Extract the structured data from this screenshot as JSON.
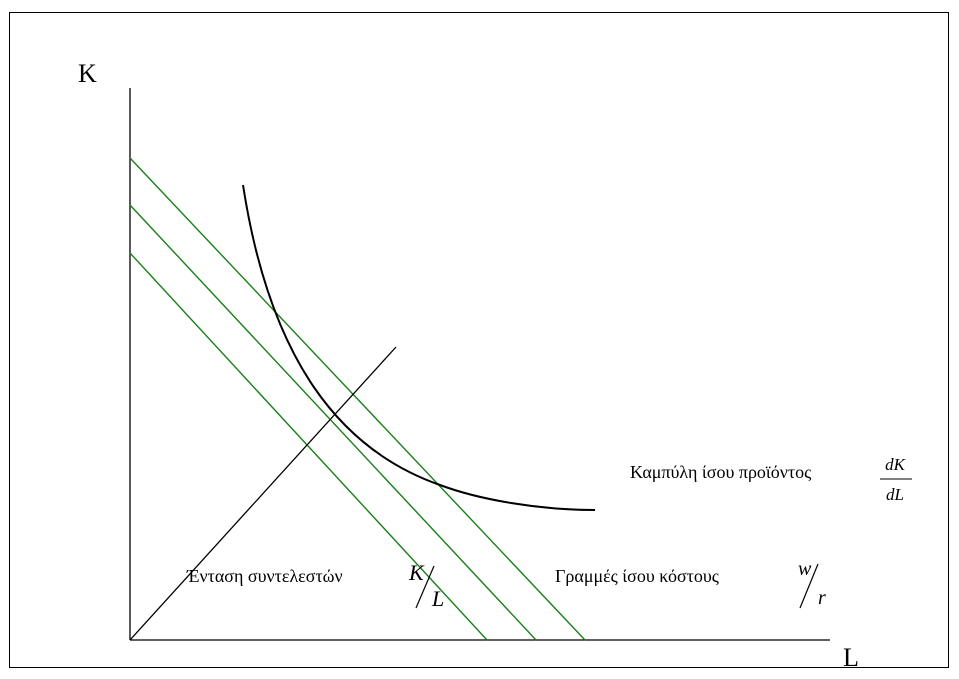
{
  "axes": {
    "y_label": "K",
    "x_label": "L"
  },
  "labels": {
    "isoquant": "Καμπύλη ίσου προϊόντος",
    "isoquant_fraction_num": "dK",
    "isoquant_fraction_den": "dL",
    "factor_intensity": "Ένταση συντελεστών",
    "factor_fraction_num": "K",
    "factor_fraction_den": "L",
    "isocost": "Γραμμές ίσου κόστους",
    "isocost_fraction_num": "w",
    "isocost_fraction_den": "r"
  },
  "colors": {
    "isocost_lines": "#1a7f1a",
    "axes": "#000000",
    "isoquant": "#000000",
    "ray": "#000000"
  }
}
